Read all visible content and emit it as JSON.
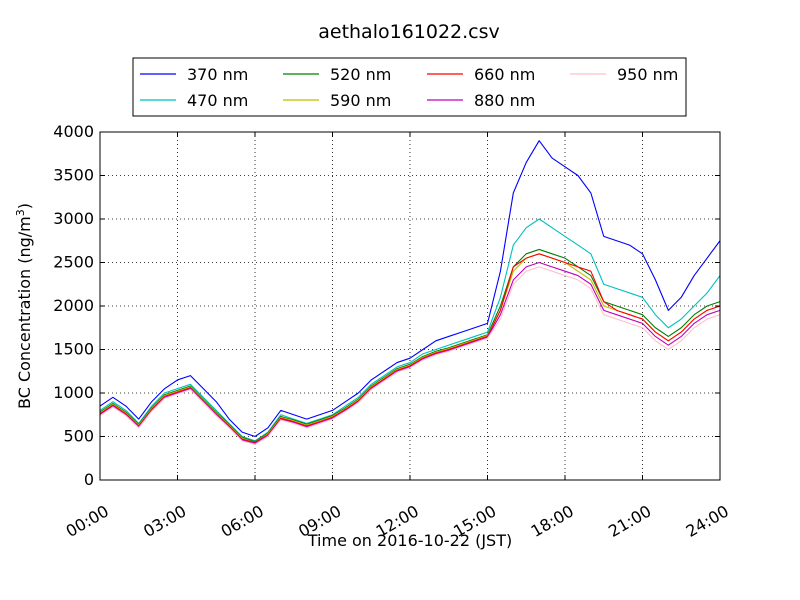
{
  "chart_data": {
    "type": "line",
    "title": "aethalo161022.csv",
    "xlabel": "Time on 2016-10-22 (JST)",
    "ylabel": "BC Concentration (ng/m",
    "ylabel_sup": "3",
    "ylabel_end": ")",
    "xlim": [
      0,
      24
    ],
    "ylim": [
      0,
      4000
    ],
    "x_ticks": [
      0,
      3,
      6,
      9,
      12,
      15,
      18,
      21,
      24
    ],
    "x_tick_labels": [
      "00:00",
      "03:00",
      "06:00",
      "09:00",
      "12:00",
      "15:00",
      "18:00",
      "21:00",
      "24:00"
    ],
    "y_ticks": [
      0,
      500,
      1000,
      1500,
      2000,
      2500,
      3000,
      3500,
      4000
    ],
    "y_tick_labels": [
      "0",
      "500",
      "1000",
      "1500",
      "2000",
      "2500",
      "3000",
      "3500",
      "4000"
    ],
    "grid": true,
    "legend_position": "top-center",
    "x_hours": [
      0,
      0.5,
      1,
      1.5,
      2,
      2.5,
      3,
      3.5,
      4,
      4.5,
      5,
      5.5,
      6,
      6.5,
      7,
      7.5,
      8,
      8.5,
      9,
      9.5,
      10,
      10.5,
      11,
      11.5,
      12,
      12.5,
      13,
      13.5,
      14,
      14.5,
      15,
      15.5,
      16,
      16.5,
      17,
      17.5,
      18,
      18.5,
      19,
      19.5,
      20,
      20.5,
      21,
      21.5,
      22,
      22.5,
      23,
      23.5,
      24
    ],
    "series": [
      {
        "name": "370 nm",
        "color": "#0000ff",
        "values": [
          850,
          950,
          850,
          700,
          900,
          1050,
          1150,
          1200,
          1050,
          900,
          700,
          550,
          500,
          600,
          800,
          750,
          700,
          750,
          800,
          900,
          1000,
          1150,
          1250,
          1350,
          1400,
          1500,
          1600,
          1650,
          1700,
          1750,
          1800,
          2400,
          3300,
          3650,
          3900,
          3700,
          3600,
          3500,
          3300,
          2800,
          2750,
          2700,
          2600,
          2300,
          1950,
          2100,
          2350,
          2550,
          2750
        ]
      },
      {
        "name": "470 nm",
        "color": "#00bfbf",
        "values": [
          800,
          900,
          800,
          650,
          850,
          1000,
          1050,
          1100,
          950,
          800,
          650,
          500,
          450,
          550,
          750,
          700,
          650,
          700,
          750,
          850,
          950,
          1100,
          1200,
          1300,
          1350,
          1450,
          1500,
          1550,
          1600,
          1650,
          1700,
          2100,
          2700,
          2900,
          3000,
          2900,
          2800,
          2700,
          2600,
          2250,
          2200,
          2150,
          2100,
          1900,
          1750,
          1850,
          2000,
          2150,
          2350
        ]
      },
      {
        "name": "520 nm",
        "color": "#008000",
        "values": [
          780,
          880,
          780,
          640,
          830,
          980,
          1030,
          1080,
          930,
          780,
          640,
          490,
          440,
          540,
          730,
          690,
          640,
          690,
          740,
          830,
          930,
          1080,
          1180,
          1280,
          1330,
          1420,
          1480,
          1520,
          1570,
          1620,
          1670,
          2000,
          2450,
          2600,
          2650,
          2600,
          2550,
          2450,
          2350,
          2050,
          2000,
          1950,
          1900,
          1750,
          1650,
          1750,
          1900,
          2000,
          2050
        ]
      },
      {
        "name": "590 nm",
        "color": "#bfbf00",
        "values": [
          770,
          870,
          770,
          630,
          820,
          970,
          1020,
          1070,
          920,
          770,
          630,
          480,
          430,
          530,
          720,
          680,
          630,
          680,
          730,
          820,
          920,
          1070,
          1170,
          1270,
          1320,
          1410,
          1470,
          1510,
          1560,
          1610,
          1660,
          1950,
          2400,
          2550,
          2600,
          2550,
          2500,
          2400,
          2300,
          2000,
          1950,
          1900,
          1850,
          1700,
          1600,
          1700,
          1850,
          1950,
          2000
        ]
      },
      {
        "name": "660 nm",
        "color": "#ff0000",
        "values": [
          760,
          860,
          760,
          620,
          810,
          960,
          1010,
          1060,
          910,
          760,
          620,
          470,
          430,
          520,
          710,
          670,
          620,
          670,
          720,
          810,
          910,
          1060,
          1160,
          1260,
          1310,
          1400,
          1460,
          1500,
          1550,
          1600,
          1650,
          1950,
          2450,
          2550,
          2600,
          2550,
          2500,
          2450,
          2400,
          2050,
          1950,
          1900,
          1850,
          1700,
          1600,
          1700,
          1850,
          1950,
          2000
        ]
      },
      {
        "name": "880 nm",
        "color": "#bf00bf",
        "values": [
          750,
          850,
          750,
          610,
          800,
          950,
          1000,
          1050,
          900,
          750,
          610,
          460,
          420,
          510,
          700,
          660,
          610,
          660,
          710,
          800,
          900,
          1050,
          1150,
          1250,
          1300,
          1390,
          1450,
          1490,
          1540,
          1590,
          1640,
          1900,
          2300,
          2450,
          2500,
          2450,
          2400,
          2350,
          2250,
          1950,
          1900,
          1850,
          1800,
          1650,
          1550,
          1650,
          1800,
          1900,
          1950
        ]
      },
      {
        "name": "950 nm",
        "color": "#ffc0cb",
        "values": [
          740,
          840,
          740,
          600,
          790,
          940,
          990,
          1040,
          890,
          740,
          600,
          450,
          410,
          500,
          690,
          650,
          600,
          650,
          700,
          790,
          890,
          1040,
          1140,
          1240,
          1290,
          1380,
          1440,
          1480,
          1530,
          1580,
          1630,
          1850,
          2250,
          2400,
          2450,
          2400,
          2350,
          2300,
          2200,
          1900,
          1850,
          1800,
          1750,
          1600,
          1500,
          1600,
          1750,
          1850,
          1900
        ]
      }
    ]
  }
}
